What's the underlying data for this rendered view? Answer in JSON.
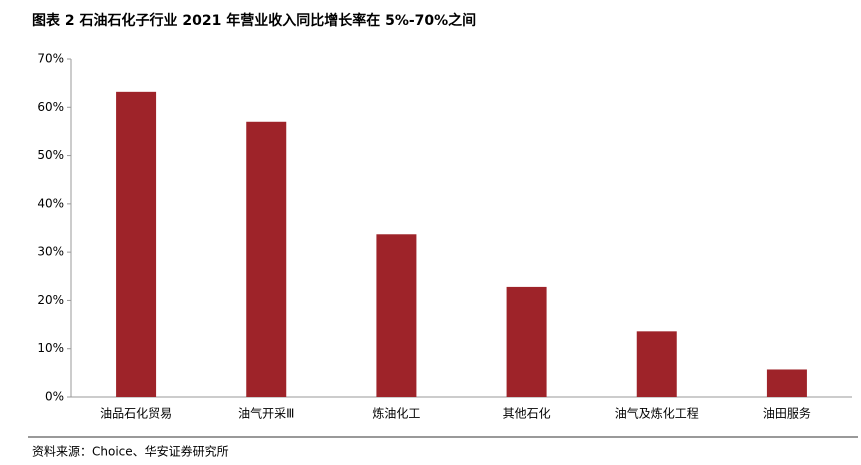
{
  "chart_data": {
    "type": "bar",
    "title": "图表 2 石油石化子行业 2021 年营业收入同比增长率在 5%-70%之间",
    "categories": [
      "油品石化贸易",
      "油气开采Ⅲ",
      "炼油化工",
      "其他石化",
      "油气及炼化工程",
      "油田服务"
    ],
    "values": [
      63.2,
      57,
      33.7,
      22.8,
      13.6,
      5.7
    ],
    "color": "#9e2329",
    "ylim": [
      0,
      70
    ],
    "yticks": [
      {
        "value": 0,
        "label": "0%"
      },
      {
        "value": 10,
        "label": "10%"
      },
      {
        "value": 20,
        "label": "20%"
      },
      {
        "value": 30,
        "label": "30%"
      },
      {
        "value": 40,
        "label": "40%"
      },
      {
        "value": 50,
        "label": "50%"
      },
      {
        "value": 60,
        "label": "60%"
      },
      {
        "value": 70,
        "label": "70%"
      }
    ],
    "grid": false,
    "source": "资料来源：Choice、华安证券研究所"
  }
}
